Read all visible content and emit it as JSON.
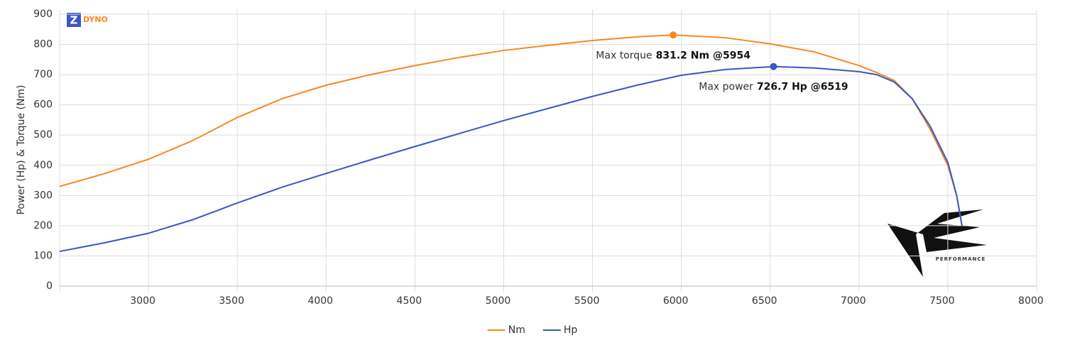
{
  "chart_data": {
    "type": "line",
    "y_label": "Power (Hp) & Torque (Nm)",
    "logo_letter": "Z",
    "logo_text": "DYNO",
    "watermark": "PERFORMANCE",
    "xlim": [
      2500,
      8000
    ],
    "xticks": [
      3000,
      3500,
      4000,
      4500,
      5000,
      5500,
      6000,
      6500,
      7000,
      7500,
      8000
    ],
    "ylim": [
      0,
      900
    ],
    "yticks": [
      0,
      100,
      200,
      300,
      400,
      500,
      600,
      700,
      800,
      900
    ],
    "grid": true,
    "legend": "bottom",
    "series": [
      {
        "name": "Nm",
        "color": "#f5891f",
        "x": [
          2500,
          2750,
          3000,
          3250,
          3500,
          3750,
          4000,
          4250,
          4500,
          4750,
          5000,
          5250,
          5500,
          5750,
          5954,
          6250,
          6500,
          6750,
          7000,
          7100,
          7200,
          7300,
          7400,
          7500,
          7550,
          7580
        ],
        "values": [
          330,
          372,
          420,
          482,
          558,
          620,
          665,
          700,
          730,
          757,
          780,
          797,
          813,
          825,
          831.2,
          822,
          802,
          775,
          730,
          707,
          680,
          620,
          520,
          400,
          300,
          200
        ]
      },
      {
        "name": "Hp",
        "color": "#3a57c4",
        "x": [
          2500,
          2750,
          3000,
          3250,
          3500,
          3750,
          4000,
          4250,
          4500,
          4750,
          5000,
          5250,
          5500,
          5750,
          6000,
          6250,
          6519,
          6750,
          7000,
          7100,
          7200,
          7300,
          7400,
          7500,
          7550,
          7580
        ],
        "values": [
          115,
          143,
          175,
          220,
          275,
          327,
          373,
          418,
          462,
          505,
          548,
          588,
          628,
          665,
          698,
          717,
          726.7,
          722,
          710,
          700,
          675,
          620,
          530,
          410,
          300,
          200
        ]
      }
    ],
    "annotations": [
      {
        "label": "Max torque",
        "value_text": "831.2 Nm @5954",
        "x": 5954,
        "y": 831.2,
        "color": "#f5891f"
      },
      {
        "label": "Max power",
        "value_text": "726.7 Hp @6519",
        "x": 6519,
        "y": 726.7,
        "color": "#3a57c4"
      }
    ]
  }
}
